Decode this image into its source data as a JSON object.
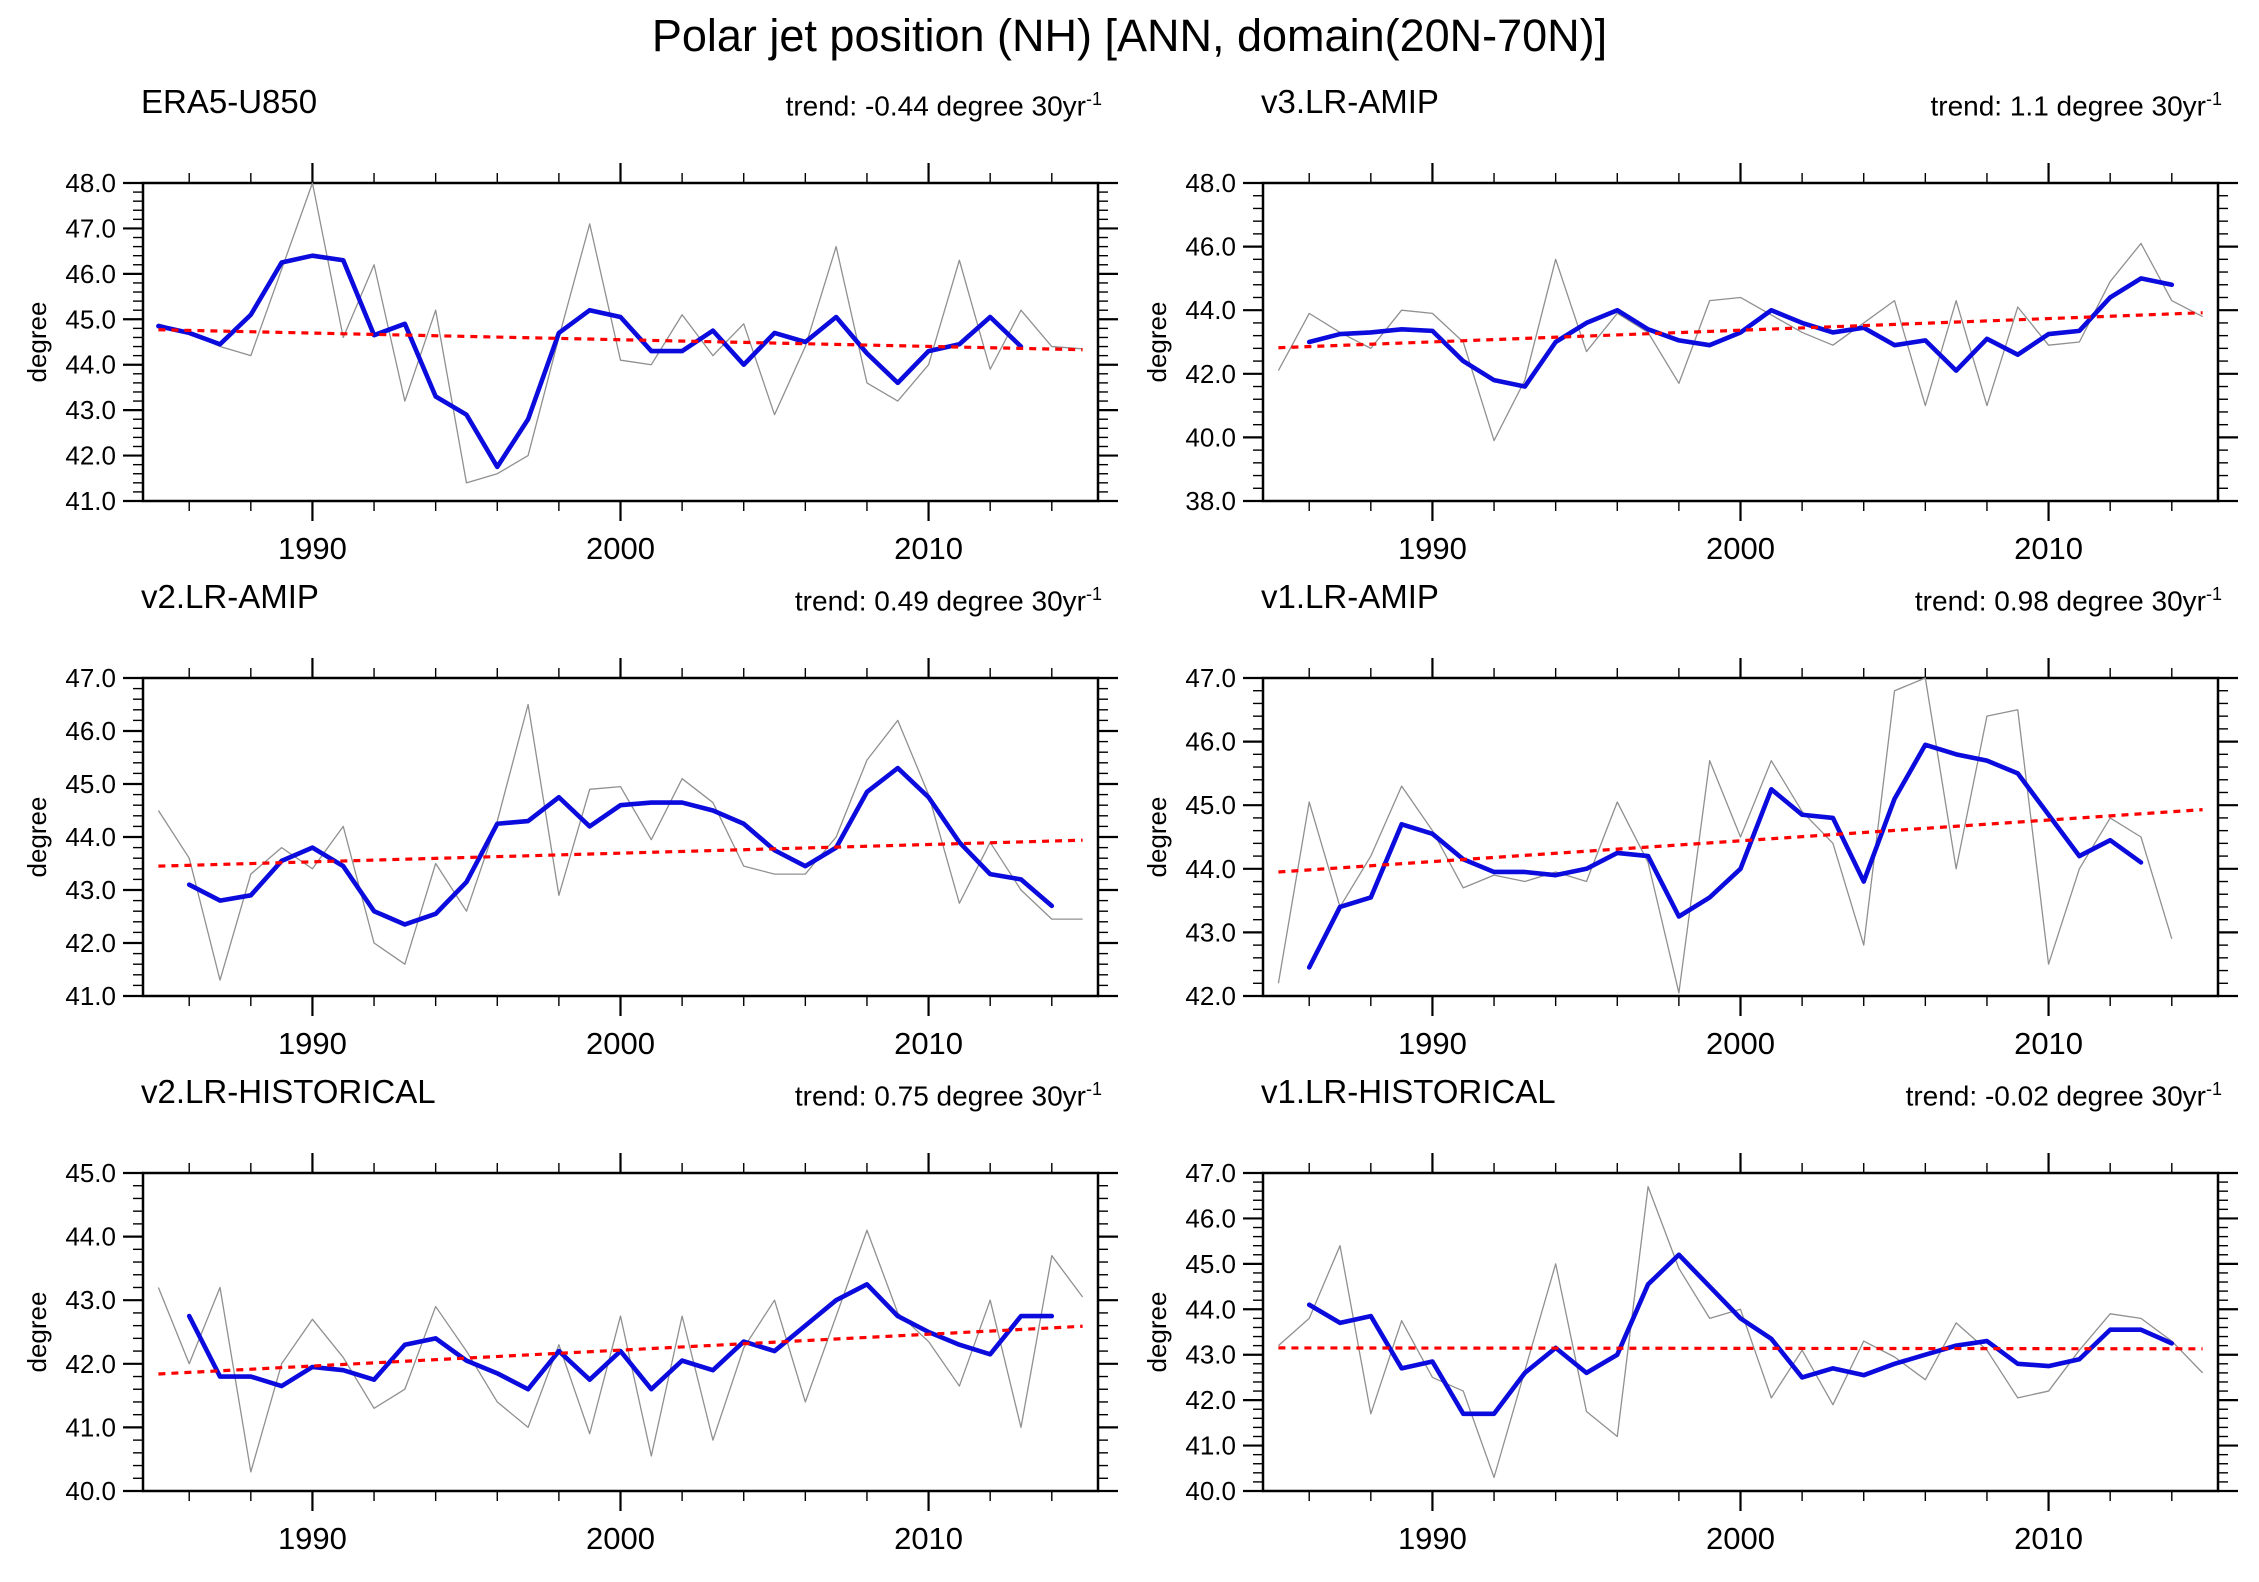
{
  "header": {
    "title": "Polar jet position (NH) [ANN, domain(20N-70N)]"
  },
  "chart_meta": {
    "trend_sup": "-1",
    "x_axis_years": [
      1990,
      2000,
      2010
    ]
  },
  "chart_data": {
    "type": "line",
    "title": "Polar jet position (NH) [ANN, domain(20N-70N)]",
    "xlabel": "",
    "ylabel": "degree",
    "x_range": [
      1984.5,
      2015.5
    ],
    "x_major_ticks": [
      1990,
      2000,
      2010
    ],
    "x_tick_labels": [
      "1990",
      "2000",
      "2010"
    ],
    "x_minor_step": 2,
    "trend_line_span": [
      1985,
      2015
    ],
    "legend": {
      "annual": "annual mean (thin gray line)",
      "smoothed": "smoothed (thick blue line)",
      "trend": "linear trend (red dashed line)"
    },
    "colors": {
      "annual": "#909090",
      "smoothed": "#0b0bdd",
      "trend": "#ff0000"
    },
    "panels": [
      {
        "title": "ERA5-U850",
        "trend_text": "trend: -0.44 degree 30yr",
        "trend_per_30yr": -0.44,
        "ylabel": "degree",
        "ylim": [
          41.0,
          48.0
        ],
        "y_major_step": 1.0,
        "y_minor_step": 0.2,
        "annual_start_year": 1985,
        "annual": [
          44.9,
          44.7,
          44.4,
          44.2,
          46.1,
          48.0,
          44.6,
          46.2,
          43.2,
          45.2,
          41.4,
          41.6,
          42.0,
          44.6,
          47.1,
          44.1,
          44.0,
          45.1,
          44.2,
          44.9,
          42.9,
          44.4,
          46.6,
          43.6,
          43.2,
          44.0,
          46.3,
          43.9,
          45.2,
          44.4,
          44.35
        ],
        "smoothed_start_year": 1985,
        "smoothed": [
          44.85,
          44.7,
          44.45,
          45.1,
          46.25,
          46.4,
          46.3,
          44.65,
          44.9,
          43.3,
          42.9,
          41.75,
          42.8,
          44.7,
          45.2,
          45.05,
          44.3,
          44.3,
          44.75,
          44.0,
          44.7,
          44.5,
          45.05,
          44.25,
          43.6,
          44.3,
          44.45,
          45.05,
          44.4
        ],
        "trend_endpoints": [
          44.77,
          44.33
        ]
      },
      {
        "title": "v3.LR-AMIP",
        "trend_text": "trend: 1.1 degree 30yr",
        "trend_per_30yr": 1.1,
        "ylabel": "degree",
        "ylim": [
          38.0,
          48.0
        ],
        "y_major_step": 2.0,
        "y_minor_step": 0.4,
        "annual_start_year": 1985,
        "annual": [
          42.1,
          43.9,
          43.3,
          42.8,
          44.0,
          43.9,
          43.0,
          39.9,
          41.8,
          45.6,
          42.7,
          43.9,
          43.3,
          41.7,
          44.3,
          44.4,
          43.85,
          43.3,
          42.9,
          43.6,
          44.3,
          41.0,
          44.3,
          41.0,
          44.1,
          42.9,
          43.0,
          44.9,
          46.1,
          44.3,
          43.8
        ],
        "smoothed_start_year": 1986,
        "smoothed": [
          43.0,
          43.25,
          43.3,
          43.4,
          43.35,
          42.4,
          41.8,
          41.6,
          43.0,
          43.6,
          44.0,
          43.4,
          43.05,
          42.9,
          43.3,
          44.0,
          43.6,
          43.3,
          43.45,
          42.9,
          43.05,
          42.1,
          43.1,
          42.6,
          43.25,
          43.35,
          44.4,
          45.0,
          44.8
        ],
        "trend_endpoints": [
          42.82,
          43.92
        ]
      },
      {
        "title": "v2.LR-AMIP",
        "trend_text": "trend: 0.49 degree 30yr",
        "trend_per_30yr": 0.49,
        "ylabel": "degree",
        "ylim": [
          41.0,
          47.0
        ],
        "y_major_step": 1.0,
        "y_minor_step": 0.2,
        "annual_start_year": 1985,
        "annual": [
          44.5,
          43.6,
          41.3,
          43.3,
          43.8,
          43.4,
          44.2,
          42.0,
          41.6,
          43.5,
          42.6,
          44.3,
          46.5,
          42.9,
          44.9,
          44.95,
          43.95,
          45.1,
          44.65,
          43.45,
          43.3,
          43.3,
          44.0,
          45.45,
          46.2,
          44.8,
          42.75,
          43.9,
          43.0,
          42.45,
          42.45
        ],
        "smoothed_start_year": 1986,
        "smoothed": [
          43.1,
          42.8,
          42.9,
          43.55,
          43.8,
          43.45,
          42.6,
          42.35,
          42.55,
          43.15,
          44.25,
          44.3,
          44.75,
          44.2,
          44.6,
          44.65,
          44.65,
          44.5,
          44.25,
          43.75,
          43.45,
          43.8,
          44.85,
          45.3,
          44.75,
          43.9,
          43.3,
          43.2,
          42.7
        ],
        "trend_endpoints": [
          43.45,
          43.94
        ]
      },
      {
        "title": "v1.LR-AMIP",
        "trend_text": "trend: 0.98 degree 30yr",
        "trend_per_30yr": 0.98,
        "ylabel": "degree",
        "ylim": [
          42.0,
          47.0
        ],
        "y_major_step": 1.0,
        "y_minor_step": 0.2,
        "annual_start_year": 1985,
        "annual": [
          42.2,
          45.05,
          43.4,
          44.2,
          45.3,
          44.6,
          43.7,
          43.9,
          43.8,
          43.95,
          43.8,
          45.05,
          44.1,
          42.05,
          45.7,
          44.5,
          45.7,
          44.9,
          44.4,
          42.8,
          46.8,
          47.0,
          44.0,
          46.4,
          46.5,
          42.5,
          44.0,
          44.8,
          44.5,
          42.9
        ],
        "smoothed_start_year": 1986,
        "smoothed": [
          42.45,
          43.4,
          43.55,
          44.7,
          44.55,
          44.15,
          43.95,
          43.95,
          43.9,
          44.0,
          44.25,
          44.2,
          43.25,
          43.55,
          44.0,
          45.25,
          44.85,
          44.8,
          43.8,
          45.1,
          45.95,
          45.8,
          45.7,
          45.5,
          44.85,
          44.2,
          44.45,
          44.1
        ],
        "trend_endpoints": [
          43.95,
          44.93
        ]
      },
      {
        "title": "v2.LR-HISTORICAL",
        "trend_text": "trend: 0.75 degree 30yr",
        "trend_per_30yr": 0.75,
        "ylabel": "degree",
        "ylim": [
          40.0,
          45.0
        ],
        "y_major_step": 1.0,
        "y_minor_step": 0.2,
        "annual_start_year": 1985,
        "annual": [
          43.2,
          42.0,
          43.2,
          40.3,
          42.0,
          42.7,
          42.1,
          41.3,
          41.6,
          42.9,
          42.2,
          41.4,
          41.0,
          42.3,
          40.9,
          42.75,
          40.55,
          42.75,
          40.8,
          42.25,
          43.0,
          41.4,
          42.75,
          44.1,
          42.8,
          42.35,
          41.65,
          43.0,
          41.0,
          43.7,
          43.05
        ],
        "smoothed_start_year": 1986,
        "smoothed": [
          42.75,
          41.8,
          41.8,
          41.65,
          41.95,
          41.9,
          41.75,
          42.3,
          42.4,
          42.05,
          41.85,
          41.6,
          42.2,
          41.75,
          42.2,
          41.6,
          42.05,
          41.9,
          42.35,
          42.2,
          42.6,
          43.0,
          43.25,
          42.75,
          42.5,
          42.3,
          42.15,
          42.75,
          42.75
        ],
        "trend_endpoints": [
          41.84,
          42.59
        ]
      },
      {
        "title": "v1.LR-HISTORICAL",
        "trend_text": "trend: -0.02 degree 30yr",
        "trend_per_30yr": -0.02,
        "ylabel": "degree",
        "ylim": [
          40.0,
          47.0
        ],
        "y_major_step": 1.0,
        "y_minor_step": 0.2,
        "annual_start_year": 1985,
        "annual": [
          43.2,
          43.8,
          45.4,
          41.7,
          43.75,
          42.5,
          42.2,
          40.3,
          42.65,
          45.0,
          41.75,
          41.2,
          46.7,
          44.9,
          43.8,
          44.0,
          42.05,
          43.1,
          41.9,
          43.3,
          42.95,
          42.45,
          43.7,
          43.1,
          42.05,
          42.2,
          43.1,
          43.9,
          43.8,
          43.3,
          42.6
        ],
        "smoothed_start_year": 1986,
        "smoothed": [
          44.1,
          43.7,
          43.85,
          42.7,
          42.85,
          41.7,
          41.7,
          42.6,
          43.15,
          42.6,
          43.0,
          44.55,
          45.2,
          44.5,
          43.8,
          43.35,
          42.5,
          42.7,
          42.55,
          42.8,
          43.0,
          43.2,
          43.3,
          42.8,
          42.75,
          42.9,
          43.55,
          43.55,
          43.25
        ],
        "trend_endpoints": [
          43.15,
          43.13
        ]
      }
    ]
  }
}
